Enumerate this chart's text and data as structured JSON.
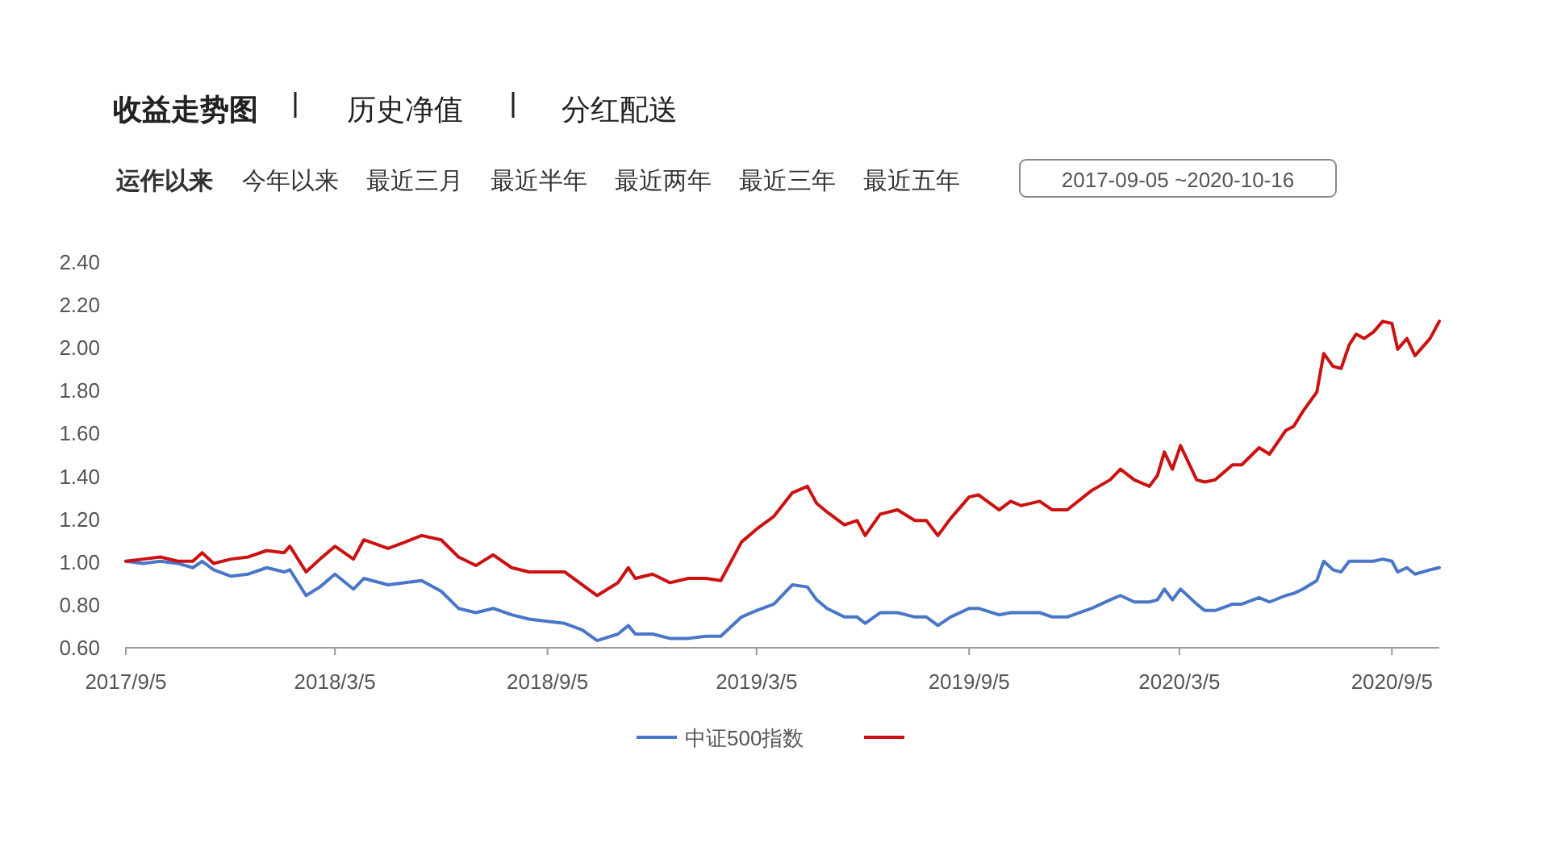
{
  "chart_data": {
    "type": "line",
    "annotations": [
      "收益走势图",
      "历史净值",
      "分红配送",
      "运作以来",
      "今年以来",
      "最近三月",
      "最近半年",
      "最近两年",
      "最近三年",
      "最近五年",
      "2017-09-05  ~2020-10-16"
    ],
    "x": [
      "2017-09-05",
      "2017-09-20",
      "2017-10-05",
      "2017-10-20",
      "2017-11-02",
      "2017-11-10",
      "2017-11-20",
      "2017-12-05",
      "2017-12-20",
      "2018-01-05",
      "2018-01-20",
      "2018-01-25",
      "2018-02-08",
      "2018-02-20",
      "2018-03-05",
      "2018-03-21",
      "2018-03-30",
      "2018-04-20",
      "2018-05-05",
      "2018-05-19",
      "2018-06-05",
      "2018-06-20",
      "2018-07-05",
      "2018-07-20",
      "2018-08-05",
      "2018-08-20",
      "2018-09-05",
      "2018-09-20",
      "2018-10-05",
      "2018-10-18",
      "2018-11-05",
      "2018-11-14",
      "2018-11-20",
      "2018-12-05",
      "2018-12-20",
      "2019-01-05",
      "2019-01-20",
      "2019-02-02",
      "2019-02-20",
      "2019-03-05",
      "2019-03-20",
      "2019-04-05",
      "2019-04-18",
      "2019-04-26",
      "2019-05-05",
      "2019-05-20",
      "2019-05-31",
      "2019-06-07",
      "2019-06-20",
      "2019-07-05",
      "2019-07-20",
      "2019-07-30",
      "2019-08-09",
      "2019-08-20",
      "2019-09-05",
      "2019-09-13",
      "2019-10-01",
      "2019-10-11",
      "2019-10-20",
      "2019-11-05",
      "2019-11-16",
      "2019-11-29",
      "2019-12-20",
      "2020-01-05",
      "2020-01-14",
      "2020-01-26",
      "2020-02-08",
      "2020-02-15",
      "2020-02-21",
      "2020-02-28",
      "2020-03-06",
      "2020-03-20",
      "2020-03-27",
      "2020-04-05",
      "2020-04-20",
      "2020-04-28",
      "2020-05-13",
      "2020-05-22",
      "2020-06-05",
      "2020-06-12",
      "2020-06-20",
      "2020-07-02",
      "2020-07-08",
      "2020-07-16",
      "2020-07-23",
      "2020-07-30",
      "2020-08-05",
      "2020-08-12",
      "2020-08-20",
      "2020-08-28",
      "2020-09-05",
      "2020-09-10",
      "2020-09-18",
      "2020-09-25",
      "2020-10-08",
      "2020-10-16"
    ],
    "series": [
      {
        "name": "中证500指数",
        "color": "#4a76c8",
        "values": [
          1.0,
          0.99,
          1.0,
          0.99,
          0.97,
          1.0,
          0.96,
          0.93,
          0.94,
          0.97,
          0.95,
          0.96,
          0.84,
          0.88,
          0.94,
          0.87,
          0.92,
          0.89,
          0.9,
          0.91,
          0.86,
          0.78,
          0.76,
          0.78,
          0.75,
          0.73,
          0.72,
          0.71,
          0.68,
          0.63,
          0.66,
          0.7,
          0.66,
          0.66,
          0.64,
          0.64,
          0.65,
          0.65,
          0.74,
          0.77,
          0.8,
          0.89,
          0.88,
          0.82,
          0.78,
          0.74,
          0.74,
          0.71,
          0.76,
          0.76,
          0.74,
          0.74,
          0.7,
          0.74,
          0.78,
          0.78,
          0.75,
          0.76,
          0.76,
          0.76,
          0.74,
          0.74,
          0.78,
          0.82,
          0.84,
          0.81,
          0.81,
          0.82,
          0.87,
          0.82,
          0.87,
          0.8,
          0.77,
          0.77,
          0.8,
          0.8,
          0.83,
          0.81,
          0.84,
          0.85,
          0.87,
          0.91,
          1.0,
          0.96,
          0.95,
          1.0,
          1.0,
          1.0,
          1.0,
          1.01,
          1.0,
          0.95,
          0.97,
          0.94,
          0.96,
          0.97
        ]
      },
      {
        "color": "#cc1111",
        "values": [
          1.0,
          1.01,
          1.02,
          1.0,
          1.0,
          1.04,
          0.99,
          1.01,
          1.02,
          1.05,
          1.04,
          1.07,
          0.95,
          1.01,
          1.07,
          1.01,
          1.1,
          1.06,
          1.09,
          1.12,
          1.1,
          1.02,
          0.98,
          1.03,
          0.97,
          0.95,
          0.95,
          0.95,
          0.89,
          0.84,
          0.9,
          0.97,
          0.92,
          0.94,
          0.9,
          0.92,
          0.92,
          0.91,
          1.09,
          1.15,
          1.21,
          1.32,
          1.35,
          1.27,
          1.23,
          1.17,
          1.19,
          1.12,
          1.22,
          1.24,
          1.19,
          1.19,
          1.12,
          1.2,
          1.3,
          1.31,
          1.24,
          1.28,
          1.26,
          1.28,
          1.24,
          1.24,
          1.33,
          1.38,
          1.43,
          1.38,
          1.35,
          1.4,
          1.51,
          1.43,
          1.54,
          1.38,
          1.37,
          1.38,
          1.45,
          1.45,
          1.53,
          1.5,
          1.61,
          1.63,
          1.7,
          1.79,
          1.97,
          1.91,
          1.9,
          2.01,
          2.06,
          2.04,
          2.07,
          2.12,
          2.11,
          1.99,
          2.04,
          1.96,
          2.04,
          2.12
        ]
      }
    ],
    "xlim": [
      "2017-09-05",
      "2020-10-16"
    ],
    "xticks": [
      {
        "value": "2017-09-05",
        "label": "2017/9/5"
      },
      {
        "value": "2018-03-05",
        "label": "2018/3/5"
      },
      {
        "value": "2018-09-05",
        "label": "2018/9/5"
      },
      {
        "value": "2019-03-05",
        "label": "2019/3/5"
      },
      {
        "value": "2019-09-05",
        "label": "2019/9/5"
      },
      {
        "value": "2020-03-05",
        "label": "2020/3/5"
      },
      {
        "value": "2020-09-05",
        "label": "2020/9/5"
      }
    ],
    "ylim": [
      0.6,
      2.4
    ],
    "yticks": [
      {
        "value": 0.6,
        "label": "0.60"
      },
      {
        "value": 0.8,
        "label": "0.80"
      },
      {
        "value": 1.0,
        "label": "1.00"
      },
      {
        "value": 1.2,
        "label": "1.20"
      },
      {
        "value": 1.4,
        "label": "1.40"
      },
      {
        "value": 1.6,
        "label": "1.60"
      },
      {
        "value": 1.8,
        "label": "1.80"
      },
      {
        "value": 2.0,
        "label": "2.00"
      },
      {
        "value": 2.2,
        "label": "2.20"
      },
      {
        "value": 2.4,
        "label": "2.40"
      }
    ],
    "legend": "bottom"
  }
}
